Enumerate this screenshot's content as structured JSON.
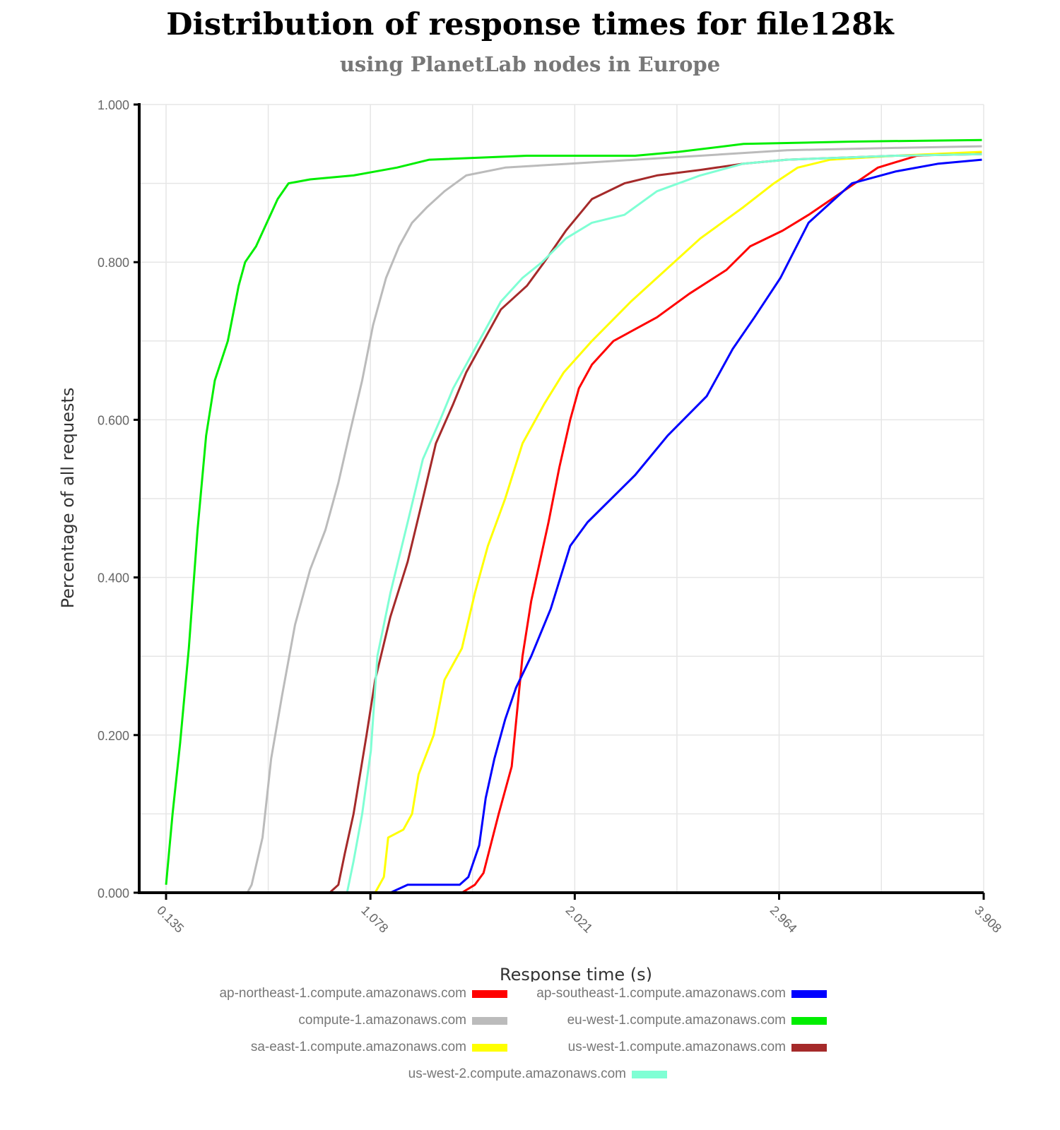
{
  "title": "Distribution of response times for file128k",
  "subtitle": "using PlanetLab nodes in Europe",
  "chart_data": {
    "type": "line",
    "xlabel": "Response time (s)",
    "ylabel": "Percentage of all requests",
    "xlim": [
      0.135,
      3.908
    ],
    "ylim": [
      0.0,
      1.0
    ],
    "xticks": [
      "0.135",
      "1.078",
      "2.021",
      "2.964",
      "3.908"
    ],
    "yticks": [
      "0.000",
      "0.200",
      "0.400",
      "0.600",
      "0.800",
      "1.000"
    ],
    "grid": true,
    "legend_position": "bottom",
    "series": [
      {
        "name": "ap-northeast-1.compute.amazonaws.com",
        "color": "#ff0000",
        "points": [
          [
            1.5,
            0.0
          ],
          [
            1.56,
            0.01
          ],
          [
            1.6,
            0.025
          ],
          [
            1.67,
            0.1
          ],
          [
            1.73,
            0.16
          ],
          [
            1.78,
            0.3
          ],
          [
            1.82,
            0.37
          ],
          [
            1.9,
            0.47
          ],
          [
            1.95,
            0.54
          ],
          [
            2.0,
            0.6
          ],
          [
            2.04,
            0.64
          ],
          [
            2.1,
            0.67
          ],
          [
            2.2,
            0.7
          ],
          [
            2.4,
            0.73
          ],
          [
            2.55,
            0.76
          ],
          [
            2.72,
            0.79
          ],
          [
            2.83,
            0.82
          ],
          [
            2.98,
            0.84
          ],
          [
            3.1,
            0.86
          ],
          [
            3.26,
            0.89
          ],
          [
            3.42,
            0.92
          ],
          [
            3.6,
            0.935
          ],
          [
            3.75,
            0.937
          ],
          [
            3.9,
            0.938
          ]
        ]
      },
      {
        "name": "ap-southeast-1.compute.amazonaws.com",
        "color": "#0000ff",
        "points": [
          [
            1.17,
            0.0
          ],
          [
            1.25,
            0.01
          ],
          [
            1.49,
            0.01
          ],
          [
            1.53,
            0.02
          ],
          [
            1.58,
            0.06
          ],
          [
            1.61,
            0.12
          ],
          [
            1.65,
            0.17
          ],
          [
            1.7,
            0.22
          ],
          [
            1.75,
            0.26
          ],
          [
            1.82,
            0.3
          ],
          [
            1.91,
            0.36
          ],
          [
            2.0,
            0.44
          ],
          [
            2.08,
            0.47
          ],
          [
            2.3,
            0.53
          ],
          [
            2.45,
            0.58
          ],
          [
            2.63,
            0.63
          ],
          [
            2.75,
            0.69
          ],
          [
            2.85,
            0.73
          ],
          [
            2.97,
            0.78
          ],
          [
            3.1,
            0.85
          ],
          [
            3.3,
            0.9
          ],
          [
            3.5,
            0.915
          ],
          [
            3.7,
            0.925
          ],
          [
            3.9,
            0.93
          ]
        ]
      },
      {
        "name": "compute-1.amazonaws.com",
        "color": "#bbbbbb",
        "points": [
          [
            0.51,
            0.0
          ],
          [
            0.53,
            0.01
          ],
          [
            0.58,
            0.07
          ],
          [
            0.62,
            0.17
          ],
          [
            0.67,
            0.25
          ],
          [
            0.73,
            0.34
          ],
          [
            0.8,
            0.41
          ],
          [
            0.87,
            0.46
          ],
          [
            0.93,
            0.52
          ],
          [
            0.98,
            0.58
          ],
          [
            1.04,
            0.65
          ],
          [
            1.09,
            0.72
          ],
          [
            1.15,
            0.78
          ],
          [
            1.21,
            0.82
          ],
          [
            1.27,
            0.85
          ],
          [
            1.34,
            0.87
          ],
          [
            1.42,
            0.89
          ],
          [
            1.52,
            0.91
          ],
          [
            1.7,
            0.92
          ],
          [
            2.0,
            0.925
          ],
          [
            2.3,
            0.93
          ],
          [
            2.6,
            0.935
          ],
          [
            3.0,
            0.942
          ],
          [
            3.5,
            0.945
          ],
          [
            3.9,
            0.947
          ]
        ]
      },
      {
        "name": "eu-west-1.compute.amazonaws.com",
        "color": "#00ee00",
        "points": [
          [
            0.135,
            0.01
          ],
          [
            0.165,
            0.1
          ],
          [
            0.2,
            0.19
          ],
          [
            0.24,
            0.31
          ],
          [
            0.28,
            0.46
          ],
          [
            0.32,
            0.58
          ],
          [
            0.36,
            0.65
          ],
          [
            0.42,
            0.7
          ],
          [
            0.47,
            0.77
          ],
          [
            0.5,
            0.8
          ],
          [
            0.55,
            0.82
          ],
          [
            0.6,
            0.85
          ],
          [
            0.65,
            0.88
          ],
          [
            0.7,
            0.9
          ],
          [
            0.8,
            0.905
          ],
          [
            1.0,
            0.91
          ],
          [
            1.2,
            0.92
          ],
          [
            1.35,
            0.93
          ],
          [
            1.8,
            0.935
          ],
          [
            2.3,
            0.935
          ],
          [
            2.5,
            0.94
          ],
          [
            2.8,
            0.95
          ],
          [
            3.3,
            0.953
          ],
          [
            3.9,
            0.955
          ]
        ]
      },
      {
        "name": "sa-east-1.compute.amazonaws.com",
        "color": "#ffff00",
        "points": [
          [
            1.1,
            0.0
          ],
          [
            1.14,
            0.02
          ],
          [
            1.16,
            0.07
          ],
          [
            1.23,
            0.08
          ],
          [
            1.27,
            0.1
          ],
          [
            1.3,
            0.15
          ],
          [
            1.37,
            0.2
          ],
          [
            1.42,
            0.27
          ],
          [
            1.5,
            0.31
          ],
          [
            1.56,
            0.38
          ],
          [
            1.62,
            0.44
          ],
          [
            1.7,
            0.5
          ],
          [
            1.78,
            0.57
          ],
          [
            1.88,
            0.62
          ],
          [
            1.97,
            0.66
          ],
          [
            2.1,
            0.7
          ],
          [
            2.28,
            0.75
          ],
          [
            2.4,
            0.78
          ],
          [
            2.6,
            0.83
          ],
          [
            2.8,
            0.87
          ],
          [
            2.94,
            0.9
          ],
          [
            3.05,
            0.92
          ],
          [
            3.2,
            0.93
          ],
          [
            3.5,
            0.935
          ],
          [
            3.9,
            0.94
          ]
        ]
      },
      {
        "name": "us-west-1.compute.amazonaws.com",
        "color": "#a52a2a",
        "points": [
          [
            0.89,
            0.0
          ],
          [
            0.93,
            0.01
          ],
          [
            0.96,
            0.05
          ],
          [
            1.0,
            0.1
          ],
          [
            1.06,
            0.2
          ],
          [
            1.1,
            0.27
          ],
          [
            1.17,
            0.35
          ],
          [
            1.25,
            0.42
          ],
          [
            1.32,
            0.5
          ],
          [
            1.38,
            0.57
          ],
          [
            1.46,
            0.62
          ],
          [
            1.52,
            0.66
          ],
          [
            1.6,
            0.7
          ],
          [
            1.68,
            0.74
          ],
          [
            1.8,
            0.77
          ],
          [
            1.88,
            0.8
          ],
          [
            1.98,
            0.84
          ],
          [
            2.1,
            0.88
          ],
          [
            2.25,
            0.9
          ],
          [
            2.4,
            0.91
          ],
          [
            2.6,
            0.917
          ],
          [
            2.8,
            0.925
          ],
          [
            3.0,
            0.93
          ],
          [
            3.5,
            0.935
          ],
          [
            3.9,
            0.937
          ]
        ]
      },
      {
        "name": "us-west-2.compute.amazonaws.com",
        "color": "#7fffd4",
        "points": [
          [
            0.97,
            0.0
          ],
          [
            1.0,
            0.04
          ],
          [
            1.04,
            0.1
          ],
          [
            1.08,
            0.18
          ],
          [
            1.11,
            0.3
          ],
          [
            1.17,
            0.38
          ],
          [
            1.25,
            0.47
          ],
          [
            1.32,
            0.55
          ],
          [
            1.4,
            0.6
          ],
          [
            1.46,
            0.64
          ],
          [
            1.52,
            0.67
          ],
          [
            1.6,
            0.71
          ],
          [
            1.68,
            0.75
          ],
          [
            1.78,
            0.78
          ],
          [
            1.87,
            0.8
          ],
          [
            1.98,
            0.83
          ],
          [
            2.1,
            0.85
          ],
          [
            2.25,
            0.86
          ],
          [
            2.4,
            0.89
          ],
          [
            2.6,
            0.91
          ],
          [
            2.8,
            0.925
          ],
          [
            3.0,
            0.93
          ],
          [
            3.5,
            0.935
          ],
          [
            3.9,
            0.937
          ]
        ]
      }
    ]
  }
}
